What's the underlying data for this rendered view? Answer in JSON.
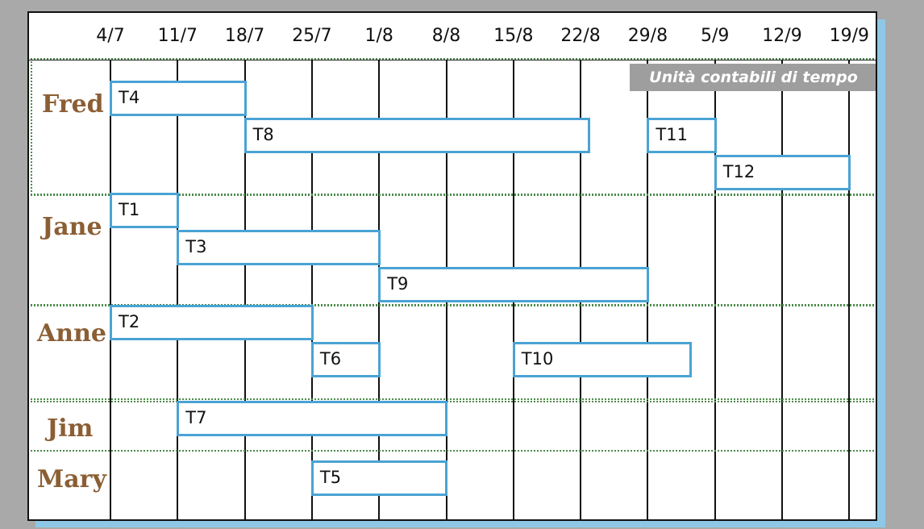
{
  "caption": "Unità contabili di tempo",
  "dates": [
    "4/7",
    "11/7",
    "18/7",
    "25/7",
    "1/8",
    "8/8",
    "15/8",
    "22/8",
    "29/8",
    "5/9",
    "12/9",
    "19/9"
  ],
  "people": [
    "Fred",
    "Jane",
    "Anne",
    "Jim",
    "Mary"
  ],
  "chart_data": {
    "type": "gantt",
    "x_unit": "week",
    "time_axis": [
      "4/7",
      "11/7",
      "18/7",
      "25/7",
      "1/8",
      "8/8",
      "15/8",
      "22/8",
      "29/8",
      "5/9",
      "12/9",
      "19/9"
    ],
    "tasks": [
      {
        "name": "T4",
        "person": "Fred",
        "start": "4/7",
        "end": "18/7"
      },
      {
        "name": "T8",
        "person": "Fred",
        "start": "18/7",
        "end": "22/8"
      },
      {
        "name": "T11",
        "person": "Fred",
        "start": "29/8",
        "end": "5/9"
      },
      {
        "name": "T12",
        "person": "Fred",
        "start": "5/9",
        "end": "19/9"
      },
      {
        "name": "T1",
        "person": "Jane",
        "start": "4/7",
        "end": "11/7"
      },
      {
        "name": "T3",
        "person": "Jane",
        "start": "11/7",
        "end": "1/8"
      },
      {
        "name": "T9",
        "person": "Jane",
        "start": "1/8",
        "end": "29/8"
      },
      {
        "name": "T2",
        "person": "Anne",
        "start": "4/7",
        "end": "25/7"
      },
      {
        "name": "T6",
        "person": "Anne",
        "start": "25/7",
        "end": "1/8"
      },
      {
        "name": "T10",
        "person": "Anne",
        "start": "15/8",
        "end": "5/9"
      },
      {
        "name": "T7",
        "person": "Jim",
        "start": "11/7",
        "end": "8/8"
      },
      {
        "name": "T5",
        "person": "Mary",
        "start": "25/7",
        "end": "8/8"
      }
    ],
    "colors": {
      "bar_border": "#4aa3d4",
      "person_label": "#8b5e34",
      "group_border": "#4a8a4a",
      "caption_bg": "#9e9e9e"
    }
  }
}
